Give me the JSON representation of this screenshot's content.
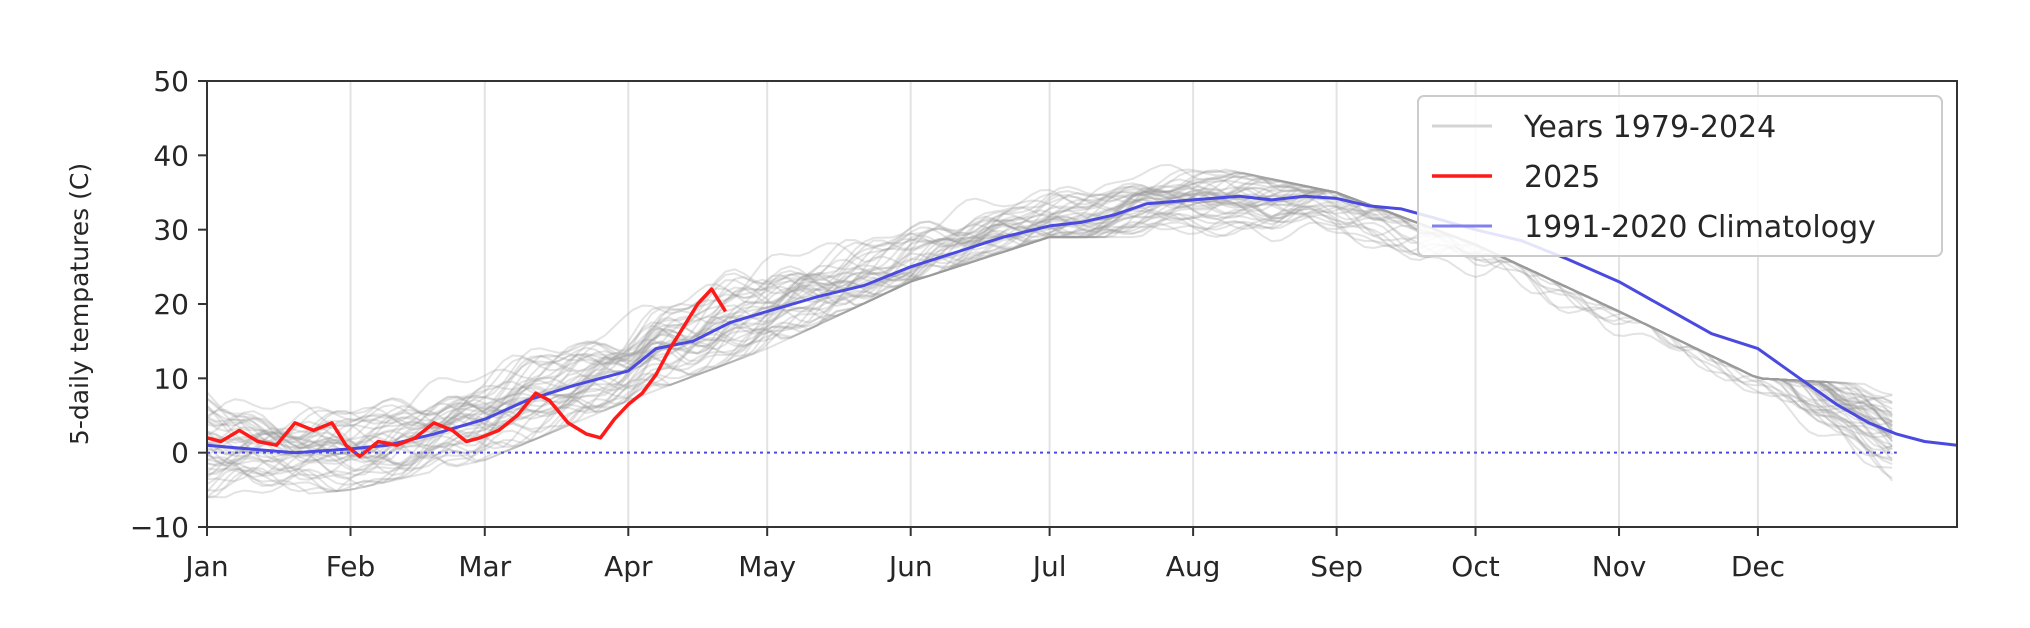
{
  "chart_data": {
    "type": "line",
    "title": "",
    "xlabel": "",
    "ylabel": "5-daily tempatures (C)",
    "xlim": [
      1,
      379
    ],
    "ylim": [
      -10,
      50
    ],
    "yticks": [
      "−10",
      "0",
      "10",
      "20",
      "30",
      "40",
      "50"
    ],
    "ytick_values": [
      -10,
      0,
      10,
      20,
      30,
      40,
      50
    ],
    "x_unit": "day of year",
    "xticks": [
      {
        "day": 1,
        "label": "Jan"
      },
      {
        "day": 32,
        "label": "Feb"
      },
      {
        "day": 61,
        "label": "Mar"
      },
      {
        "day": 92,
        "label": "Apr"
      },
      {
        "day": 122,
        "label": "May"
      },
      {
        "day": 153,
        "label": "Jun"
      },
      {
        "day": 183,
        "label": "Jul"
      },
      {
        "day": 214,
        "label": "Aug"
      },
      {
        "day": 245,
        "label": "Sep"
      },
      {
        "day": 275,
        "label": "Oct"
      },
      {
        "day": 306,
        "label": "Nov"
      },
      {
        "day": 336,
        "label": "Dec"
      }
    ],
    "grid": "vertical",
    "legend_position": "top-right",
    "reference_line": {
      "y": 0,
      "style": "dotted",
      "color": "#4a4ae0"
    },
    "series": [
      {
        "name": "Years 1979-2024",
        "color": "#9a9a9a",
        "style": "ensemble of 46 yearly lines (one per year), shown as a light gray band",
        "band_lower": [
          [
            1,
            -6
          ],
          [
            15,
            -6
          ],
          [
            32,
            -5
          ],
          [
            61,
            -1
          ],
          [
            92,
            7
          ],
          [
            122,
            14
          ],
          [
            153,
            23
          ],
          [
            183,
            29
          ],
          [
            214,
            29
          ],
          [
            245,
            23
          ],
          [
            275,
            14
          ],
          [
            306,
            4
          ],
          [
            336,
            -2
          ],
          [
            366,
            -5
          ]
        ],
        "band_upper": [
          [
            1,
            11
          ],
          [
            15,
            8
          ],
          [
            32,
            9
          ],
          [
            61,
            14
          ],
          [
            92,
            22
          ],
          [
            122,
            30
          ],
          [
            153,
            37
          ],
          [
            183,
            40
          ],
          [
            214,
            39
          ],
          [
            245,
            35
          ],
          [
            275,
            28
          ],
          [
            306,
            19
          ],
          [
            336,
            10
          ],
          [
            366,
            9
          ]
        ]
      },
      {
        "name": "2025",
        "color": "#ff1a1a",
        "points": [
          [
            1,
            2
          ],
          [
            4,
            1.5
          ],
          [
            8,
            3
          ],
          [
            12,
            1.5
          ],
          [
            16,
            1
          ],
          [
            20,
            4
          ],
          [
            24,
            3
          ],
          [
            28,
            4
          ],
          [
            31,
            1
          ],
          [
            34,
            -0.5
          ],
          [
            38,
            1.5
          ],
          [
            42,
            1
          ],
          [
            46,
            2
          ],
          [
            50,
            4
          ],
          [
            54,
            3
          ],
          [
            57,
            1.5
          ],
          [
            60,
            2
          ],
          [
            64,
            3
          ],
          [
            68,
            5
          ],
          [
            72,
            8
          ],
          [
            75,
            7
          ],
          [
            79,
            4
          ],
          [
            83,
            2.5
          ],
          [
            86,
            2
          ],
          [
            89,
            4.5
          ],
          [
            92,
            6.5
          ],
          [
            95,
            8
          ],
          [
            98,
            10.5
          ],
          [
            101,
            14
          ],
          [
            104,
            17
          ],
          [
            107,
            20
          ],
          [
            110,
            22
          ],
          [
            113,
            19
          ]
        ]
      },
      {
        "name": "1991-2020 Climatology",
        "color": "#4a4ae0",
        "points": [
          [
            1,
            1
          ],
          [
            10,
            0.5
          ],
          [
            20,
            0
          ],
          [
            32,
            0.5
          ],
          [
            40,
            1
          ],
          [
            50,
            2.5
          ],
          [
            61,
            4.5
          ],
          [
            70,
            7
          ],
          [
            80,
            9
          ],
          [
            92,
            11
          ],
          [
            98,
            14
          ],
          [
            106,
            15
          ],
          [
            114,
            17.5
          ],
          [
            122,
            19
          ],
          [
            133,
            21
          ],
          [
            143,
            22.5
          ],
          [
            153,
            25
          ],
          [
            163,
            27
          ],
          [
            173,
            29
          ],
          [
            183,
            30.5
          ],
          [
            190,
            31
          ],
          [
            197,
            32
          ],
          [
            204,
            33.5
          ],
          [
            214,
            34
          ],
          [
            224,
            34.5
          ],
          [
            231,
            34
          ],
          [
            238,
            34.5
          ],
          [
            245,
            34.2
          ],
          [
            252,
            33.2
          ],
          [
            259,
            32.8
          ],
          [
            266,
            31.6
          ],
          [
            275,
            30
          ],
          [
            285,
            28.5
          ],
          [
            295,
            26
          ],
          [
            306,
            23
          ],
          [
            316,
            19.5
          ],
          [
            326,
            16
          ],
          [
            336,
            14
          ],
          [
            345,
            10
          ],
          [
            353,
            6.5
          ],
          [
            360,
            4
          ],
          [
            366,
            2.5
          ],
          [
            372,
            1.5
          ],
          [
            379,
            1
          ]
        ]
      }
    ]
  }
}
